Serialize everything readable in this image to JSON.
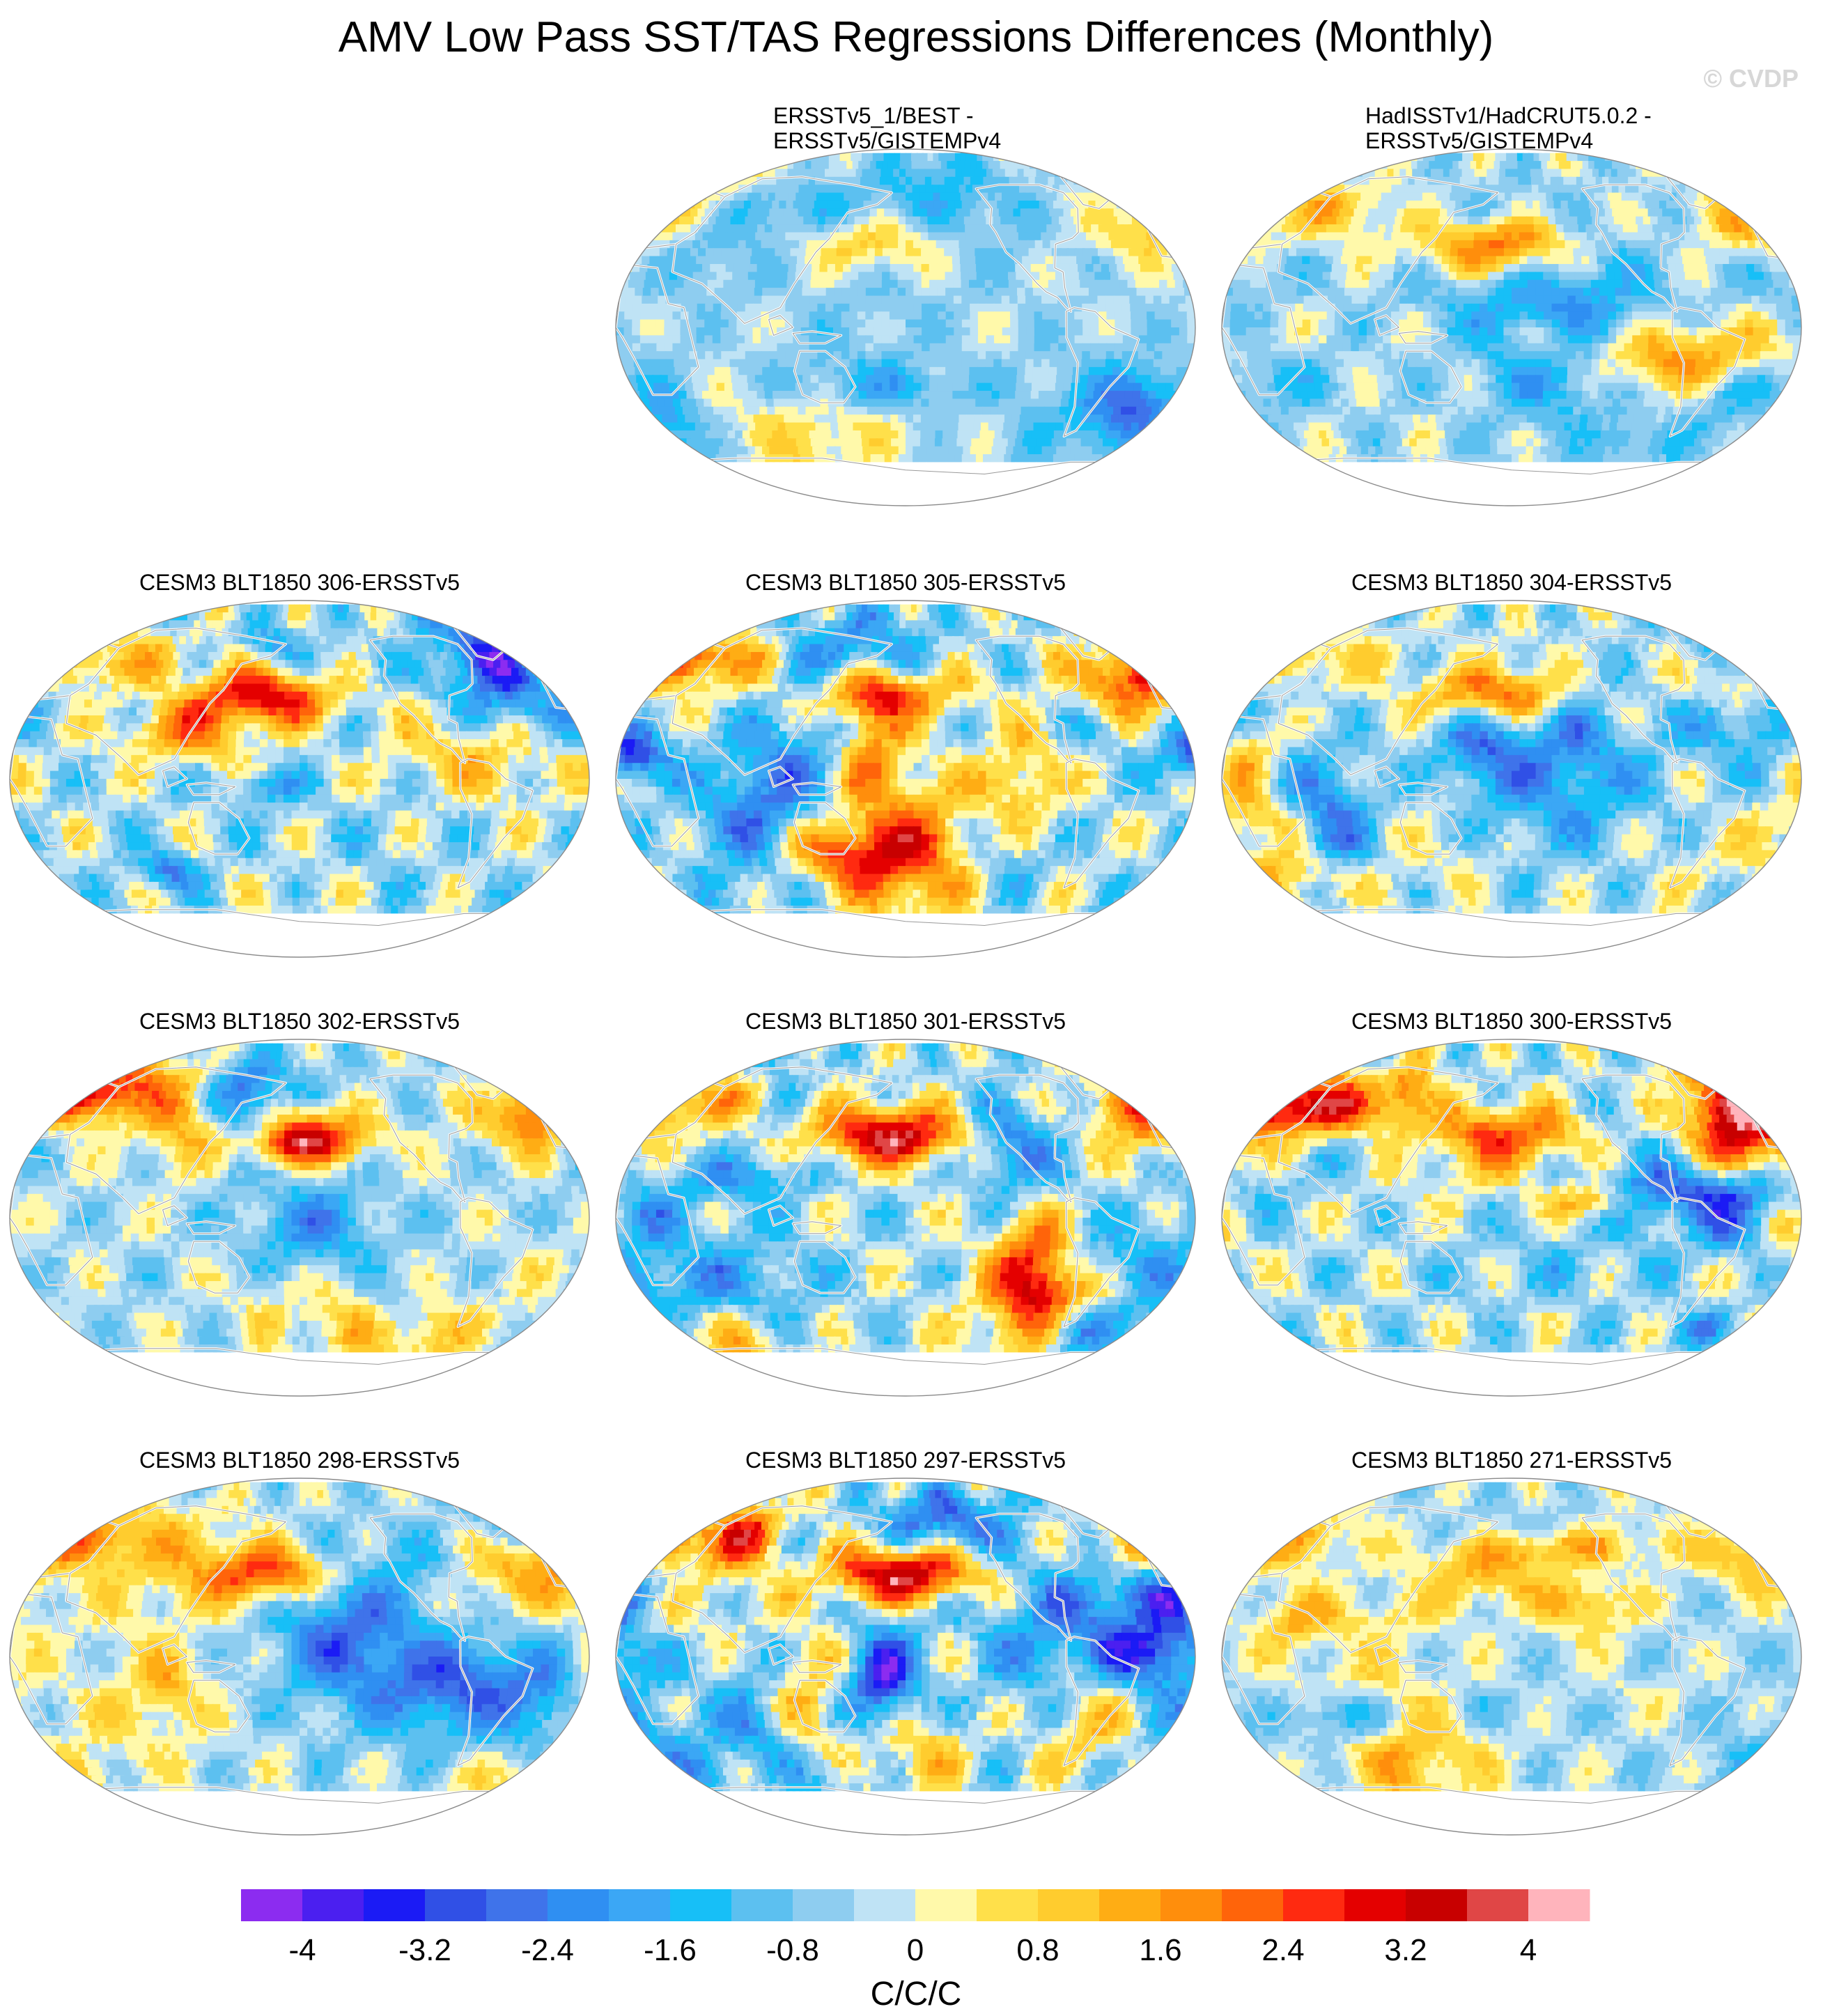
{
  "title": "AMV Low Pass SST/TAS Regressions Differences (Monthly)",
  "watermark": "© CVDP",
  "panels": [
    {
      "title": [
        "ERSSTv5_1/BEST -",
        "ERSSTv5/GISTEMPv4"
      ],
      "pattern": "obs1"
    },
    {
      "title": [
        "HadISSTv1/HadCRUT5.0.2 -",
        "ERSSTv5/GISTEMPv4"
      ],
      "pattern": "obs2"
    },
    {
      "title": [
        "CESM3 BLT1850 306-ERSSTv5"
      ],
      "pattern": "m306"
    },
    {
      "title": [
        "CESM3 BLT1850 305-ERSSTv5"
      ],
      "pattern": "m305"
    },
    {
      "title": [
        "CESM3 BLT1850 304-ERSSTv5"
      ],
      "pattern": "m304"
    },
    {
      "title": [
        "CESM3 BLT1850 302-ERSSTv5"
      ],
      "pattern": "m302"
    },
    {
      "title": [
        "CESM3 BLT1850 301-ERSSTv5"
      ],
      "pattern": "m301"
    },
    {
      "title": [
        "CESM3 BLT1850 300-ERSSTv5"
      ],
      "pattern": "m300"
    },
    {
      "title": [
        "CESM3 BLT1850 298-ERSSTv5"
      ],
      "pattern": "m298"
    },
    {
      "title": [
        "CESM3 BLT1850 297-ERSSTv5"
      ],
      "pattern": "m297"
    },
    {
      "title": [
        "CESM3 BLT1850 271-ERSSTv5"
      ],
      "pattern": "m271"
    }
  ],
  "colorbar": {
    "unit": "C/C/C",
    "colors": [
      "#8c2cf0",
      "#4b1ff0",
      "#1b1bf5",
      "#3050e6",
      "#3f73ea",
      "#2f8ff2",
      "#3ba7f5",
      "#17bff7",
      "#5cc0f0",
      "#8ecdf0",
      "#bfe3f5",
      "#fff9aa",
      "#ffe04a",
      "#ffcc2e",
      "#ffad14",
      "#ff8e0c",
      "#ff640a",
      "#ff2a10",
      "#e40000",
      "#c80000",
      "#e04646",
      "#ffb4bc"
    ],
    "tick_labels": [
      "-4",
      "-3.2",
      "-2.4",
      "-1.6",
      "-0.8",
      "0",
      "0.8",
      "1.6",
      "2.4",
      "3.2",
      "4"
    ]
  }
}
